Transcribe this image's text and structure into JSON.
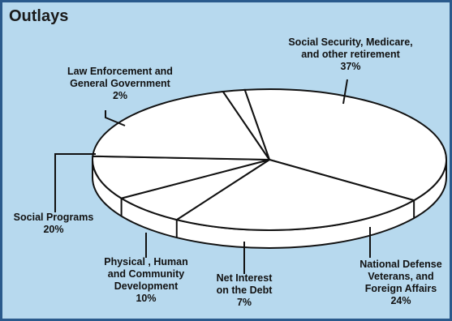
{
  "title": "Outlays",
  "chart_data": {
    "type": "pie",
    "title": "Outlays",
    "style": "3d",
    "colors": {
      "background": "#b7d9ee",
      "slice_fill": "#ffffff",
      "border": "#2a5a8c",
      "line": "#111111"
    },
    "slices": [
      {
        "label_lines": [
          "Social Security, Medicare,",
          "and other retirement"
        ],
        "value": 37,
        "value_label": "37%"
      },
      {
        "label_lines": [
          "National Defense",
          "Veterans, and",
          "Foreign Affairs"
        ],
        "value": 24,
        "value_label": "24%"
      },
      {
        "label_lines": [
          "Net Interest",
          "on the Debt"
        ],
        "value": 7,
        "value_label": "7%"
      },
      {
        "label_lines": [
          "Physical , Human",
          "and Community",
          "Development"
        ],
        "value": 10,
        "value_label": "10%"
      },
      {
        "label_lines": [
          "Social Programs"
        ],
        "value": 20,
        "value_label": "20%"
      },
      {
        "label_lines": [
          "Law Enforcement and",
          "General Government"
        ],
        "value": 2,
        "value_label": "2%"
      }
    ]
  }
}
